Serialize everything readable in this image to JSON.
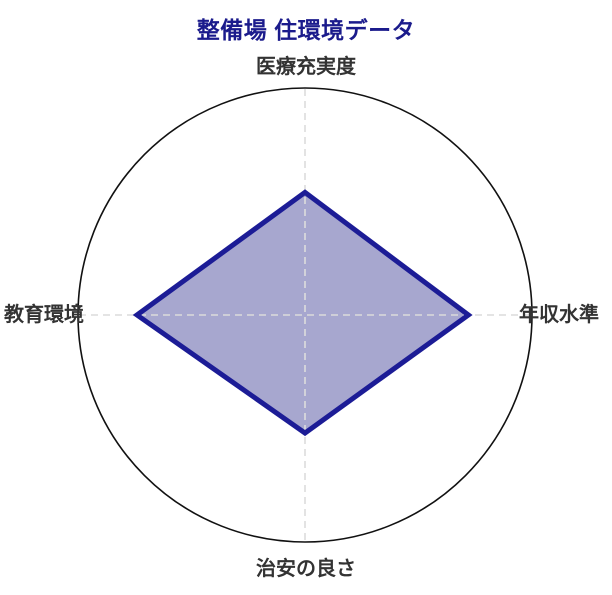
{
  "chart_data": {
    "type": "radar",
    "title": "整備場 住環境データ",
    "categories": [
      "医療充実度",
      "年収水準",
      "治安の良さ",
      "教育環境"
    ],
    "series": [
      {
        "name": "整備場 住環境データ",
        "values": [
          0.54,
          0.72,
          0.52,
          0.74
        ]
      }
    ],
    "r_max": 1.0,
    "r_tick_labels_visible": false,
    "legend": "none",
    "grid": {
      "outer_boundary": "circle",
      "spokes": "dashed cross at 0deg/90deg/180deg/270deg",
      "grid_style": "dashed"
    },
    "angles_deg_clockwise_from_top": [
      0,
      90,
      180,
      270
    ]
  },
  "colors": {
    "title": "#1b1b8c",
    "axis_label": "#333333",
    "outer_circle": "#111111",
    "gridline": "#dcdcdc",
    "series_fill": "#a7a7cf",
    "series_outline": "#1c1c96",
    "background": "#ffffff"
  }
}
